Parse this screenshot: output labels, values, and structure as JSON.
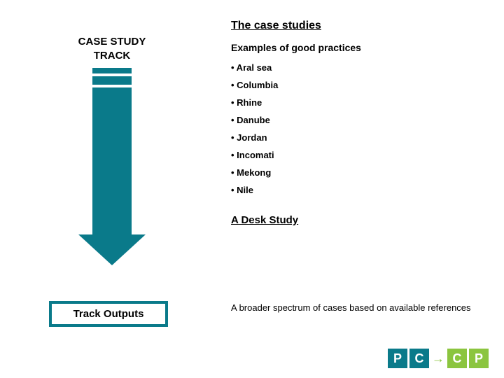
{
  "left": {
    "title_line1": "CASE STUDY",
    "title_line2": "TRACK",
    "outputs_label": "Track  Outputs"
  },
  "arrow": {
    "segments": [
      {
        "height": 8,
        "color": "#0a7a8a"
      },
      {
        "height": 12,
        "color": "#0a7a8a"
      }
    ],
    "body_height": 210,
    "body_color": "#0a7a8a",
    "head_color": "#0a7a8a",
    "head_height": 44,
    "border_color": "#1b4f5a"
  },
  "outputs_box_border": "#0a7a8a",
  "right": {
    "section_title": "The case studies",
    "examples_label": "Examples of good practices",
    "bullets": [
      "Aral sea",
      "Columbia",
      "Rhine",
      "Danube",
      "Jordan",
      "Incomati",
      "Mekong",
      "Nile"
    ],
    "desk_title": "A Desk Study",
    "desk_text": "A broader spectrum of cases based on available references"
  },
  "logo": {
    "p1_bg": "#0a7a8a",
    "c_bg": "#0a7a8a",
    "arrow_color": "#8bc53f",
    "c2_bg": "#8bc53f",
    "p2_bg": "#8bc53f",
    "letters": [
      "P",
      "C",
      "→",
      "C",
      "P"
    ]
  },
  "colors": {
    "text": "#000000",
    "bg": "#ffffff"
  }
}
